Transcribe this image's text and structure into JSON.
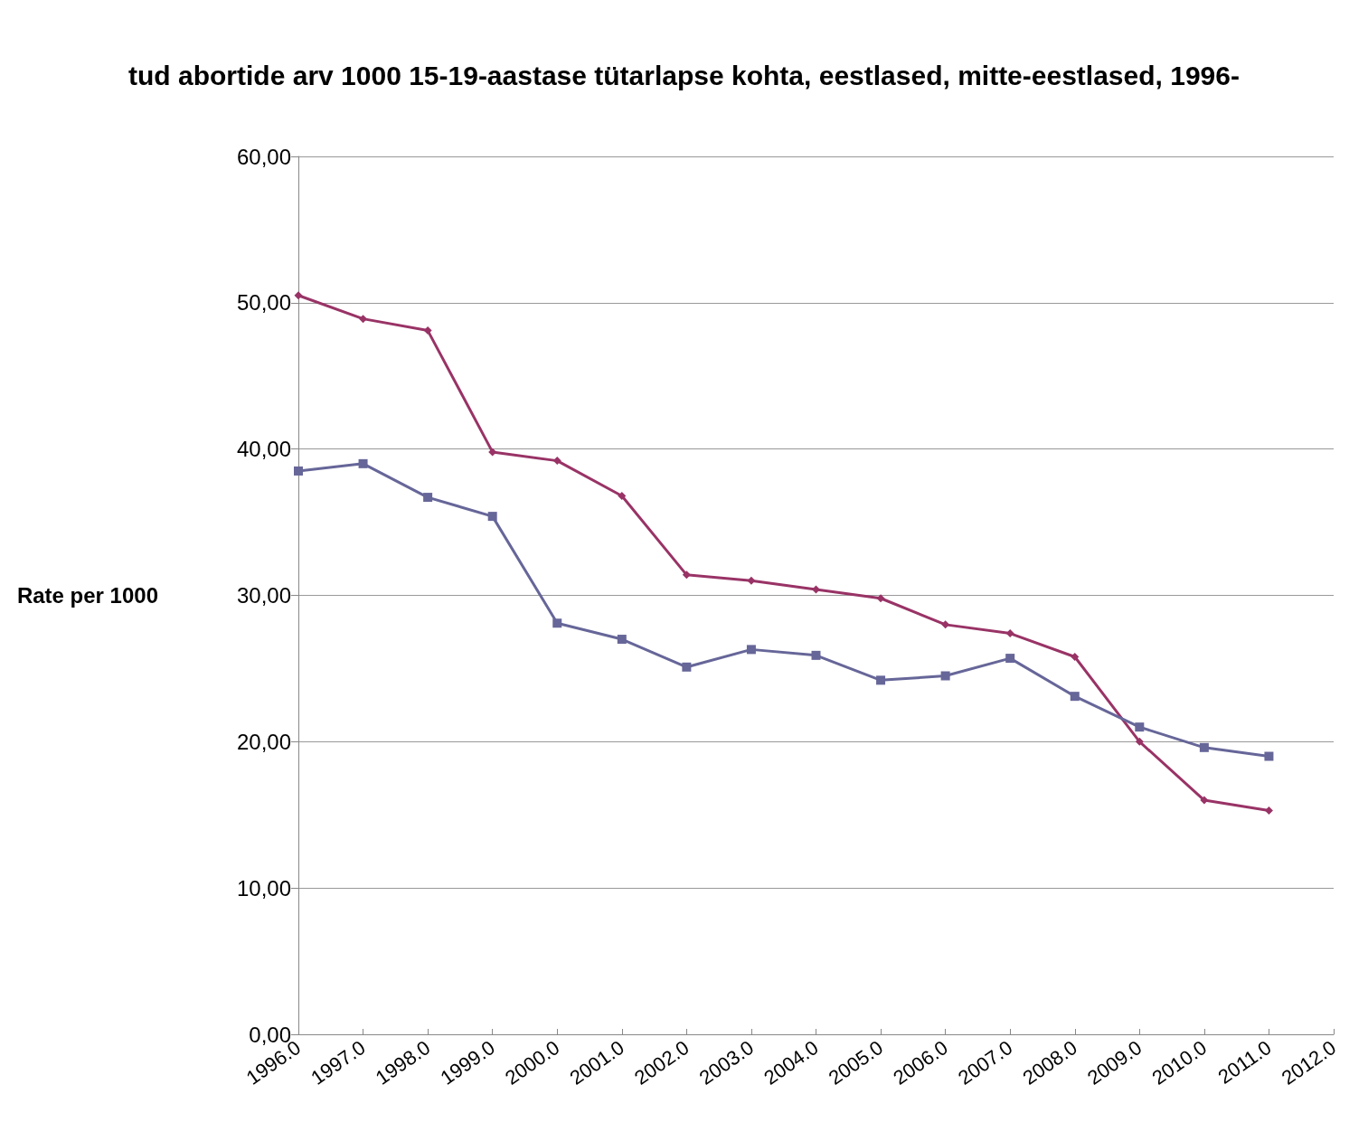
{
  "chart_data": {
    "type": "line",
    "title": "tud abortide arv 1000 15-19-aastase tütarlapse kohta, eestlased, mitte-eestlased, 1996-",
    "ylabel": "Rate per 1000",
    "x": [
      1996,
      1997,
      1998,
      1999,
      2000,
      2001,
      2002,
      2003,
      2004,
      2005,
      2006,
      2007,
      2008,
      2009,
      2010,
      2011
    ],
    "series": [
      {
        "color": "#993366",
        "marker": "diamond",
        "values": [
          50.5,
          48.9,
          48.1,
          39.8,
          39.2,
          36.8,
          31.4,
          31.0,
          30.4,
          29.8,
          28.0,
          27.4,
          25.8,
          20.0,
          16.0,
          15.3
        ]
      },
      {
        "color": "#666699",
        "marker": "square",
        "values": [
          38.5,
          39.0,
          36.7,
          35.4,
          28.1,
          27.0,
          25.1,
          26.3,
          25.9,
          24.2,
          24.5,
          25.7,
          23.1,
          21.0,
          19.6,
          19.0
        ]
      }
    ],
    "xlim": [
      1996,
      2012
    ],
    "xticks": [
      {
        "value": 1996,
        "label": "1996.0"
      },
      {
        "value": 1997,
        "label": "1997.0"
      },
      {
        "value": 1998,
        "label": "1998.0"
      },
      {
        "value": 1999,
        "label": "1999.0"
      },
      {
        "value": 2000,
        "label": "2000.0"
      },
      {
        "value": 2001,
        "label": "2001.0"
      },
      {
        "value": 2002,
        "label": "2002.0"
      },
      {
        "value": 2003,
        "label": "2003.0"
      },
      {
        "value": 2004,
        "label": "2004.0"
      },
      {
        "value": 2005,
        "label": "2005.0"
      },
      {
        "value": 2006,
        "label": "2006.0"
      },
      {
        "value": 2007,
        "label": "2007.0"
      },
      {
        "value": 2008,
        "label": "2008.0"
      },
      {
        "value": 2009,
        "label": "2009.0"
      },
      {
        "value": 2010,
        "label": "2010.0"
      },
      {
        "value": 2011,
        "label": "2011.0"
      },
      {
        "value": 2012,
        "label": "2012.0"
      }
    ],
    "ylim": [
      0,
      60
    ],
    "yticks": [
      {
        "value": 0,
        "label": "0,00"
      },
      {
        "value": 10,
        "label": "10,00"
      },
      {
        "value": 20,
        "label": "20,00"
      },
      {
        "value": 30,
        "label": "30,00"
      },
      {
        "value": 40,
        "label": "40,00"
      },
      {
        "value": 50,
        "label": "50,00"
      },
      {
        "value": 60,
        "label": "60,00"
      }
    ],
    "grid": "y",
    "line_style": "solid"
  }
}
